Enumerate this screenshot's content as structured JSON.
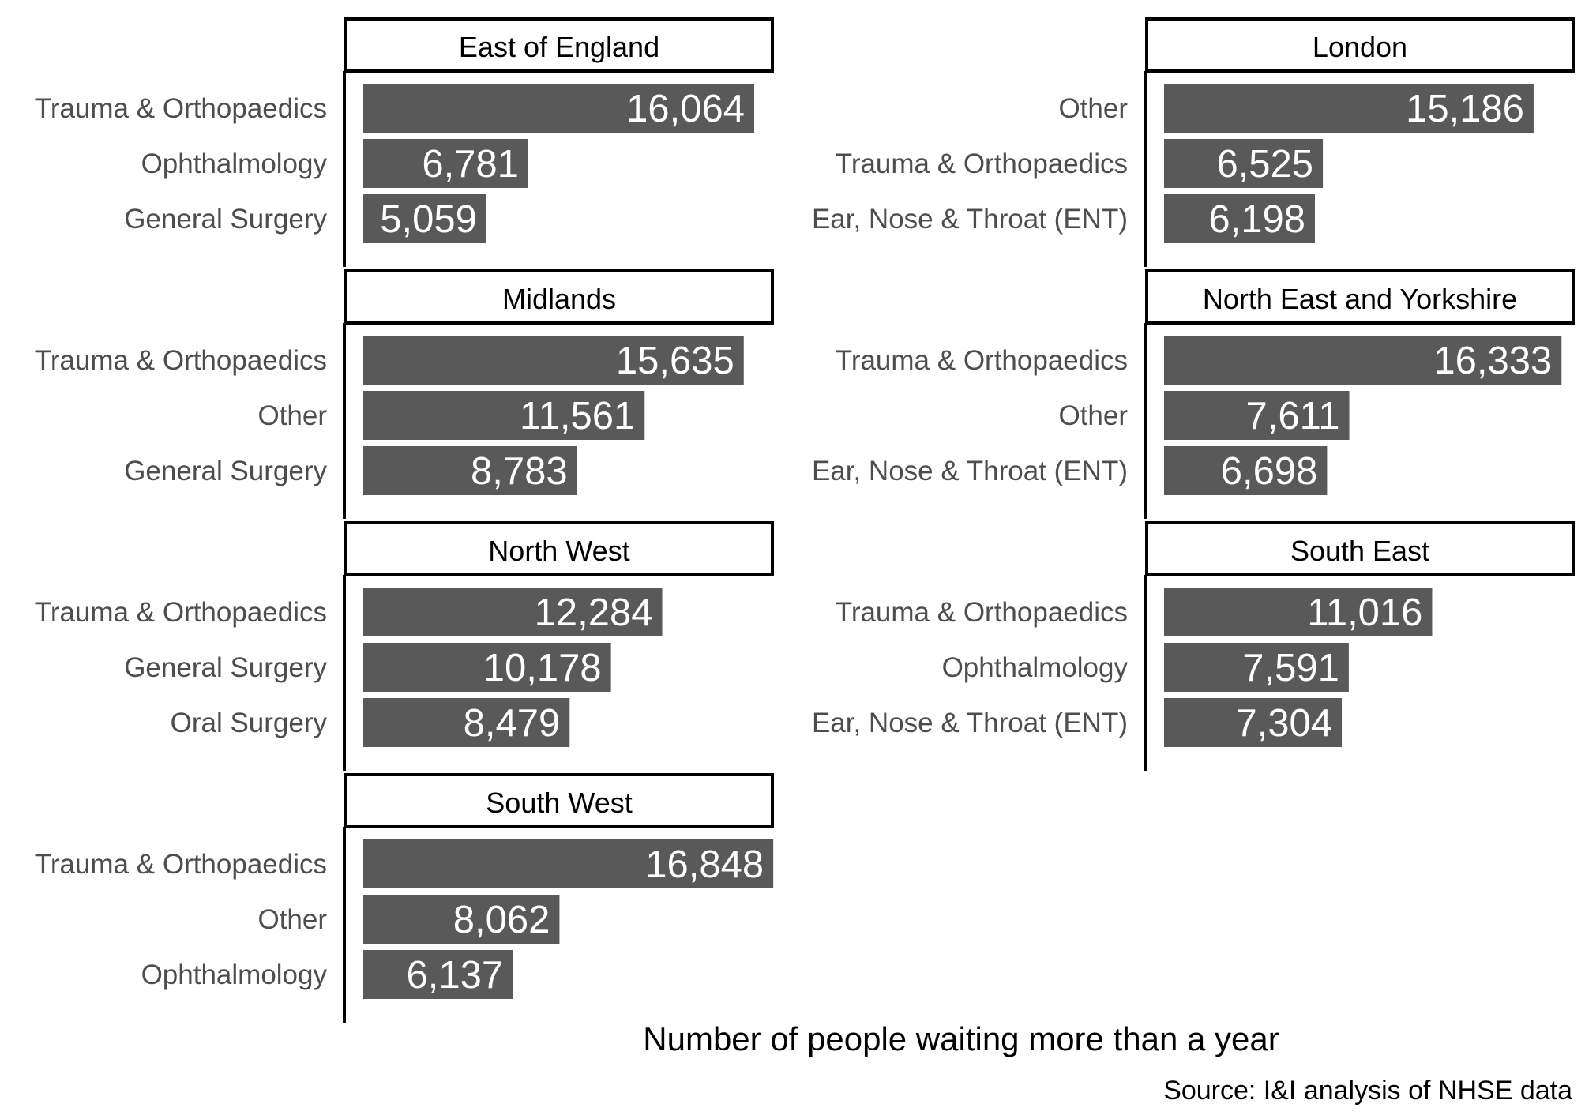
{
  "chart_data": {
    "type": "bar",
    "orientation": "horizontal",
    "facets": [
      {
        "title": "East of England",
        "bars": [
          {
            "category": "Trauma & Orthopaedics",
            "value": 16064,
            "label": "16,064"
          },
          {
            "category": "Ophthalmology",
            "value": 6781,
            "label": "6,781"
          },
          {
            "category": "General Surgery",
            "value": 5059,
            "label": "5,059"
          }
        ]
      },
      {
        "title": "London",
        "bars": [
          {
            "category": "Other",
            "value": 15186,
            "label": "15,186"
          },
          {
            "category": "Trauma & Orthopaedics",
            "value": 6525,
            "label": "6,525"
          },
          {
            "category": "Ear, Nose & Throat (ENT)",
            "value": 6198,
            "label": "6,198"
          }
        ]
      },
      {
        "title": "Midlands",
        "bars": [
          {
            "category": "Trauma & Orthopaedics",
            "value": 15635,
            "label": "15,635"
          },
          {
            "category": "Other",
            "value": 11561,
            "label": "11,561"
          },
          {
            "category": "General Surgery",
            "value": 8783,
            "label": "8,783"
          }
        ]
      },
      {
        "title": "North East and Yorkshire",
        "bars": [
          {
            "category": "Trauma & Orthopaedics",
            "value": 16333,
            "label": "16,333"
          },
          {
            "category": "Other",
            "value": 7611,
            "label": "7,611"
          },
          {
            "category": "Ear, Nose & Throat (ENT)",
            "value": 6698,
            "label": "6,698"
          }
        ]
      },
      {
        "title": "North West",
        "bars": [
          {
            "category": "Trauma & Orthopaedics",
            "value": 12284,
            "label": "12,284"
          },
          {
            "category": "General Surgery",
            "value": 10178,
            "label": "10,178"
          },
          {
            "category": "Oral Surgery",
            "value": 8479,
            "label": "8,479"
          }
        ]
      },
      {
        "title": "South East",
        "bars": [
          {
            "category": "Trauma & Orthopaedics",
            "value": 11016,
            "label": "11,016"
          },
          {
            "category": "Ophthalmology",
            "value": 7591,
            "label": "7,591"
          },
          {
            "category": "Ear, Nose & Throat (ENT)",
            "value": 7304,
            "label": "7,304"
          }
        ]
      },
      {
        "title": "South West",
        "bars": [
          {
            "category": "Trauma & Orthopaedics",
            "value": 16848,
            "label": "16,848"
          },
          {
            "category": "Other",
            "value": 8062,
            "label": "8,062"
          },
          {
            "category": "Ophthalmology",
            "value": 6137,
            "label": "6,137"
          }
        ]
      }
    ],
    "xlabel": "Number of people waiting more than a year",
    "caption": "Source: I&I analysis of NHSE data",
    "xlim": [
      0,
      17500
    ],
    "grid": false,
    "legend": "none",
    "colors": {
      "bar": "#595959",
      "bar_label": "#ffffff",
      "category_label": "#4d4d4d",
      "panel_border": "#000000"
    }
  }
}
